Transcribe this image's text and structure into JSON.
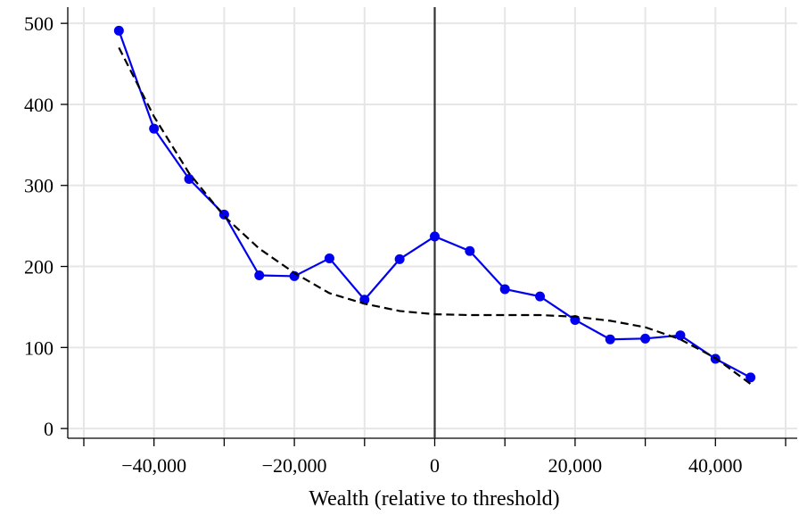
{
  "chart_data": {
    "type": "line",
    "title": "",
    "xlabel": "Wealth (relative to threshold)",
    "ylabel": "",
    "xlim": [
      -50000,
      50000
    ],
    "ylim": [
      -12,
      520
    ],
    "grid": true,
    "x_ticks": [
      -40000,
      -20000,
      0,
      20000,
      40000
    ],
    "x_tick_labels": [
      "−40,000",
      "−20,000",
      "0",
      "20,000",
      "40,000"
    ],
    "x_minor_ticks": [
      -50000,
      -30000,
      -10000,
      10000,
      30000,
      50000
    ],
    "y_ticks": [
      0,
      100,
      200,
      300,
      400,
      500
    ],
    "y_tick_labels": [
      "0",
      "100",
      "200",
      "300",
      "400",
      "500"
    ],
    "threshold_line_x": 0,
    "series": [
      {
        "style": "markers-line",
        "color": "#0000ee",
        "x": [
          -45000,
          -40000,
          -35000,
          -30000,
          -25000,
          -20000,
          -15000,
          -10000,
          -5000,
          0,
          5000,
          10000,
          15000,
          20000,
          25000,
          30000,
          35000,
          40000,
          45000
        ],
        "y": [
          491,
          370,
          308,
          264,
          189,
          188,
          210,
          159,
          209,
          237,
          219,
          172,
          163,
          134,
          110,
          111,
          115,
          86,
          63
        ]
      },
      {
        "style": "dashed-fit",
        "color": "#000000",
        "x": [
          -45000,
          -40000,
          -35000,
          -30000,
          -25000,
          -20000,
          -15000,
          -10000,
          -5000,
          0,
          5000,
          10000,
          15000,
          20000,
          25000,
          30000,
          35000,
          40000,
          45000
        ],
        "y": [
          470,
          385,
          315,
          262,
          222,
          192,
          167,
          154,
          145,
          141,
          140,
          140,
          140,
          138,
          133,
          125,
          110,
          87,
          55
        ]
      }
    ]
  }
}
